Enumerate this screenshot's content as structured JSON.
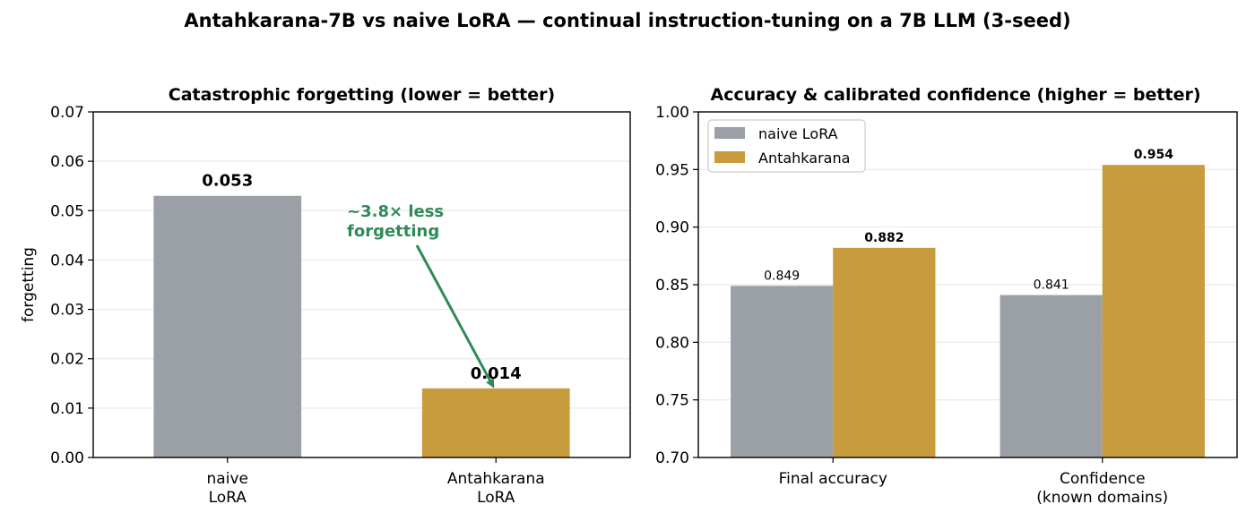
{
  "suptitle": "Antahkarana-7B vs naive LoRA — continual instruction-tuning on a 7B LLM (3-seed)",
  "colors": {
    "naive": "#9aa0a6",
    "antah": "#c89b3c",
    "annotation": "#2e8b57",
    "grid": "#e8e8e8"
  },
  "chart_data": [
    {
      "type": "bar",
      "title": "Catastrophic forgetting  (lower = better)",
      "ylabel": "forgetting",
      "xlabel": "",
      "ylim": [
        0,
        0.07
      ],
      "yticks": [
        "0.00",
        "0.01",
        "0.02",
        "0.03",
        "0.04",
        "0.05",
        "0.06",
        "0.07"
      ],
      "categories": [
        [
          "naive",
          "LoRA"
        ],
        [
          "Antahkarana",
          "LoRA"
        ]
      ],
      "values": [
        0.053,
        0.014
      ],
      "value_labels": [
        "0.053",
        "0.014"
      ],
      "grid": "y",
      "annotation": {
        "text": [
          "~3.8× less",
          "forgetting"
        ],
        "points_to": "Antahkarana LoRA bar"
      }
    },
    {
      "type": "bar",
      "title": "Accuracy & calibrated confidence  (higher = better)",
      "ylabel": "",
      "xlabel": "",
      "ylim": [
        0.7,
        1.0
      ],
      "yticks": [
        "0.70",
        "0.75",
        "0.80",
        "0.85",
        "0.90",
        "0.95",
        "1.00"
      ],
      "categories": [
        [
          "Final accuracy"
        ],
        [
          "Confidence",
          "(known domains)"
        ]
      ],
      "series": [
        {
          "name": "naive LoRA",
          "values": [
            0.849,
            0.841
          ],
          "value_labels": [
            "0.849",
            "0.841"
          ]
        },
        {
          "name": "Antahkarana",
          "values": [
            0.882,
            0.954
          ],
          "value_labels": [
            "0.882",
            "0.954"
          ]
        }
      ],
      "legend": "top-left",
      "grid": "y"
    }
  ]
}
